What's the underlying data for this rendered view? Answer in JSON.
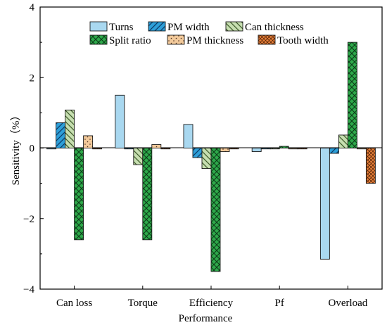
{
  "chart_data": {
    "type": "bar",
    "title": "",
    "xlabel": "Performance",
    "ylabel": "Sensitivity（%）",
    "ylim": [
      -4,
      4
    ],
    "yticks": [
      "−4",
      "−2",
      "0",
      "2",
      "4"
    ],
    "grid": false,
    "legend_position": "top",
    "categories": [
      "Can loss",
      "Torque",
      "Efficiency",
      "Pf",
      "Overload"
    ],
    "series": [
      {
        "name": "Turns",
        "values": [
          0.0,
          1.5,
          0.67,
          -0.1,
          -3.15
        ],
        "color": "#a9d8f0",
        "pattern": "none"
      },
      {
        "name": "PM width",
        "values": [
          0.72,
          0.0,
          -0.27,
          0.0,
          -0.15
        ],
        "color": "#2e9fd8",
        "pattern": "diag-right"
      },
      {
        "name": "Can thickness",
        "values": [
          1.08,
          -0.47,
          -0.58,
          0.0,
          0.37
        ],
        "color": "#c6deb0",
        "pattern": "diag-left"
      },
      {
        "name": "Split ratio",
        "values": [
          -2.6,
          -2.6,
          -3.5,
          0.05,
          3.0
        ],
        "color": "#2ea84a",
        "pattern": "crosshatch"
      },
      {
        "name": "PM thickness",
        "values": [
          0.35,
          0.1,
          -0.1,
          0.0,
          0.0
        ],
        "color": "#f2c99a",
        "pattern": "dots"
      },
      {
        "name": "Tooth width",
        "values": [
          0.0,
          0.0,
          0.0,
          0.0,
          -1.0
        ],
        "color": "#e8813a",
        "pattern": "crosshatch-fine"
      }
    ]
  }
}
